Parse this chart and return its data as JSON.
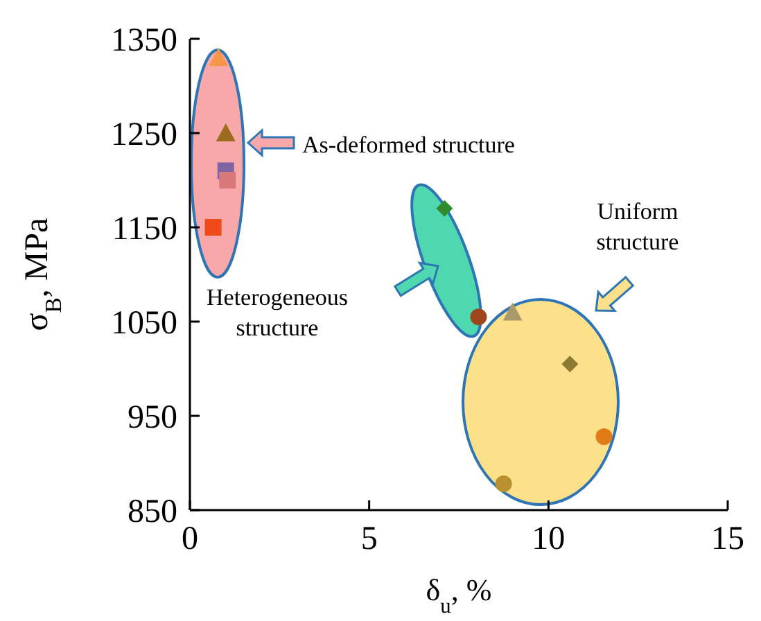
{
  "chart_data": {
    "type": "scatter",
    "xlabel": "δ$_{u}$, %",
    "ylabel": "σ$_{B}$, MPa",
    "xlim": [
      0,
      15
    ],
    "xticks": [
      0,
      5,
      10,
      15
    ],
    "ylim": [
      850,
      1350
    ],
    "yticks": [
      850,
      950,
      1050,
      1150,
      1250,
      1350
    ],
    "grid": false,
    "series": [
      {
        "type": "scatter",
        "marker": "triangle",
        "color": "#f79646",
        "x": [
          0.8
        ],
        "values": [
          1330
        ]
      },
      {
        "type": "scatter",
        "marker": "triangle",
        "color": "#9c6b1e",
        "x": [
          1.0
        ],
        "values": [
          1250
        ]
      },
      {
        "type": "scatter",
        "marker": "square",
        "color": "#8064a2",
        "x": [
          1.0
        ],
        "values": [
          1210
        ]
      },
      {
        "type": "scatter",
        "marker": "square",
        "color": "#d9787a",
        "x": [
          1.05
        ],
        "values": [
          1200
        ]
      },
      {
        "type": "scatter",
        "marker": "square",
        "color": "#f04a1a",
        "x": [
          0.65
        ],
        "values": [
          1150
        ]
      },
      {
        "type": "scatter",
        "marker": "diamond",
        "color": "#2e8b2e",
        "x": [
          7.1
        ],
        "values": [
          1170
        ]
      },
      {
        "type": "scatter",
        "marker": "circle",
        "color": "#a0461e",
        "x": [
          8.05
        ],
        "values": [
          1055
        ]
      },
      {
        "type": "scatter",
        "marker": "triangle",
        "color": "#a89a6a",
        "x": [
          9.0
        ],
        "values": [
          1060
        ]
      },
      {
        "type": "scatter",
        "marker": "diamond",
        "color": "#8c7a32",
        "x": [
          10.6
        ],
        "values": [
          1005
        ]
      },
      {
        "type": "scatter",
        "marker": "circle",
        "color": "#e07b16",
        "x": [
          11.55
        ],
        "values": [
          928
        ]
      },
      {
        "type": "scatter",
        "marker": "circle",
        "color": "#b8922e",
        "x": [
          8.75
        ],
        "values": [
          878
        ]
      }
    ],
    "annotations": [
      "As-deformed structure",
      "Heterogeneous\nstructure",
      "Uniform\nstructure"
    ]
  }
}
